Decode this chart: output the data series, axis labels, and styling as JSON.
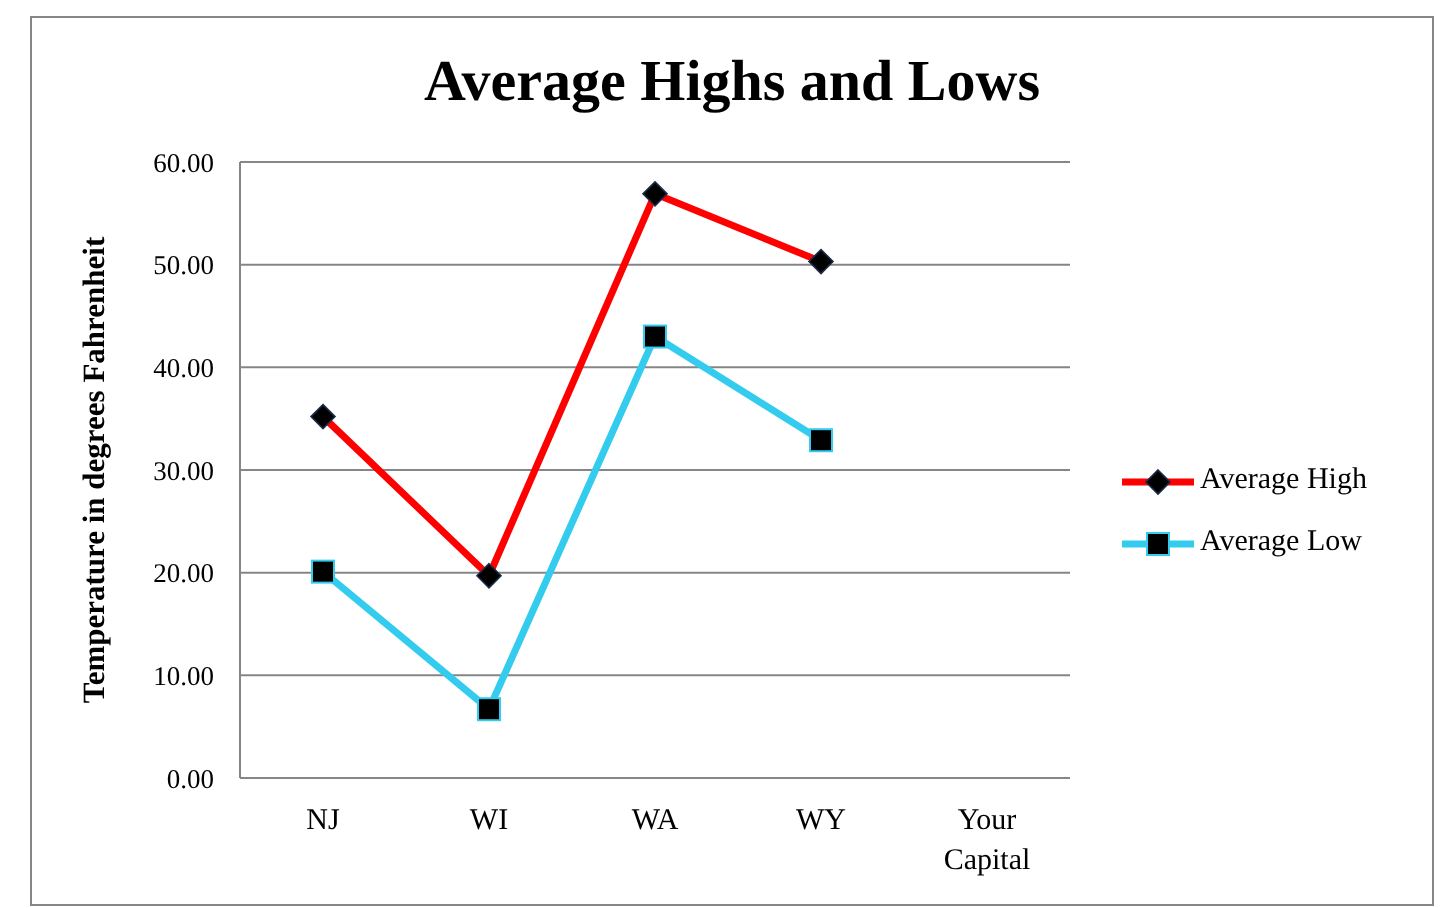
{
  "chart_data": {
    "type": "line",
    "title": "Average Highs and Lows",
    "ylabel": "Temperature in degrees Fahrenheit",
    "categories": [
      "NJ",
      "WI",
      "WA",
      "WY",
      "Your Capital"
    ],
    "series": [
      {
        "name": "Average High",
        "color": "#ff0000",
        "marker": "diamond",
        "values": [
          35.2,
          19.7,
          56.9,
          50.3,
          null
        ]
      },
      {
        "name": "Average Low",
        "color": "#33ccee",
        "marker": "square",
        "values": [
          20.1,
          6.7,
          43,
          32.9,
          null
        ]
      }
    ],
    "ylim": [
      0,
      60
    ],
    "yticks": [
      {
        "value": 0,
        "label": "0.00"
      },
      {
        "value": 10,
        "label": "10.00"
      },
      {
        "value": 20,
        "label": "20.00"
      },
      {
        "value": 30,
        "label": "30.00"
      },
      {
        "value": 40,
        "label": "40.00"
      },
      {
        "value": 50,
        "label": "50.00"
      },
      {
        "value": 60,
        "label": "60.00"
      }
    ],
    "grid": "y",
    "legend": "right"
  }
}
